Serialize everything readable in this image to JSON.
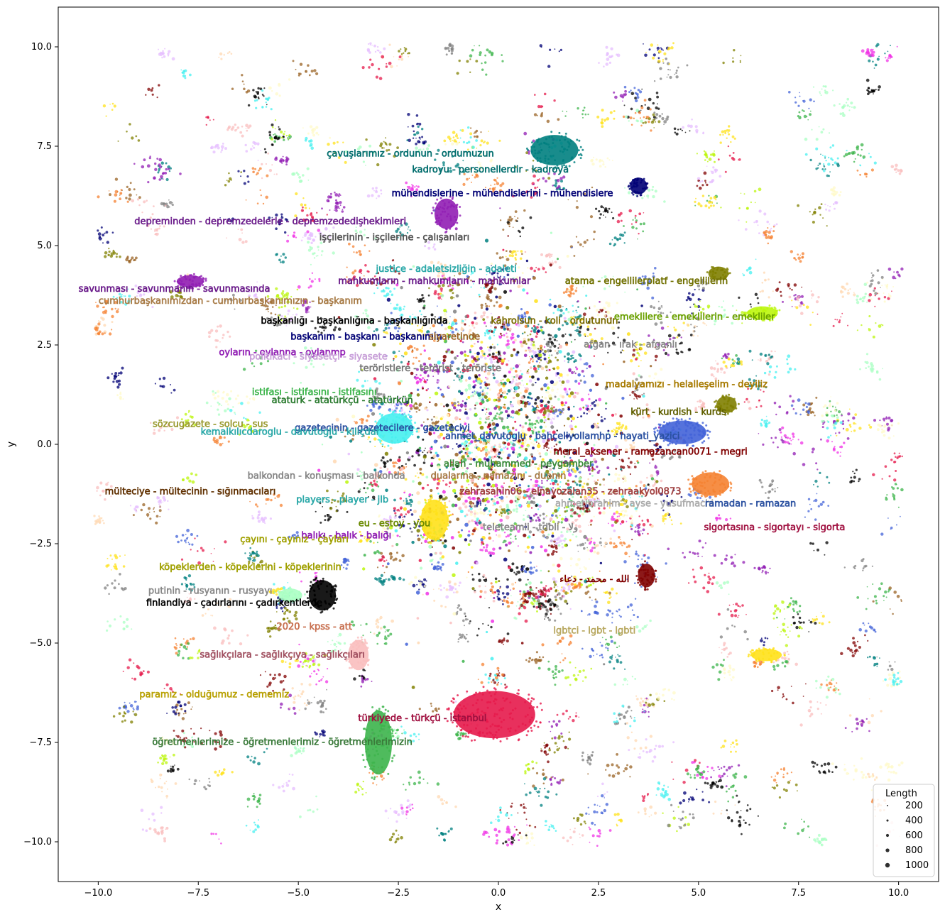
{
  "chart_data": {
    "type": "scatter",
    "title": "",
    "xlabel": "x",
    "ylabel": "y",
    "xlim": [
      -11,
      11
    ],
    "ylim": [
      -11,
      11
    ],
    "x_ticks": [
      -10.0,
      -7.5,
      -5.0,
      -2.5,
      0.0,
      2.5,
      5.0,
      7.5,
      10.0
    ],
    "y_ticks": [
      -10.0,
      -7.5,
      -5.0,
      -2.5,
      0.0,
      2.5,
      5.0,
      7.5,
      10.0
    ],
    "x_tick_labels": [
      "−10.0",
      "−7.5",
      "−5.0",
      "−2.5",
      "0.0",
      "2.5",
      "5.0",
      "7.5",
      "10.0"
    ],
    "y_tick_labels": [
      "−10.0",
      "−7.5",
      "−5.0",
      "−2.5",
      "0.0",
      "2.5",
      "5.0",
      "7.5",
      "10.0"
    ],
    "grid": false,
    "legend": {
      "title": "Length",
      "placement": "bottom-right",
      "entries": [
        "200",
        "400",
        "600",
        "800",
        "1000"
      ]
    },
    "palette": [
      "#e6194b",
      "#3cb44b",
      "#ffe119",
      "#4363d8",
      "#f58231",
      "#911eb4",
      "#46f0f0",
      "#f032e6",
      "#bcf60c",
      "#fabebe",
      "#008080",
      "#e6beff",
      "#9a6324",
      "#fffac8",
      "#800000",
      "#aaffc3",
      "#808000",
      "#ffd8b1",
      "#000075",
      "#808080",
      "#000000"
    ],
    "clusters": [
      {
        "label": "türkiyede - türkçü - istanbul",
        "x": -0.1,
        "y": -6.8,
        "rx": 1.2,
        "ry": 0.7,
        "color": "#e6194b",
        "size": 1000
      },
      {
        "label": "kürt - kurdish - kurds",
        "x": 4.6,
        "y": 0.3,
        "rx": 0.7,
        "ry": 0.35,
        "color": "#4363d8",
        "size": 700
      },
      {
        "label": "çavuşlarımız - ordunun - ordumuzun",
        "x": 1.4,
        "y": 7.4,
        "rx": 0.7,
        "ry": 0.45,
        "color": "#008080",
        "size": 500
      },
      {
        "label": "gazetecinin - gazetecilere - gazeteciyi",
        "x": -2.6,
        "y": 0.4,
        "rx": 0.55,
        "ry": 0.45,
        "color": "#46f0f0",
        "size": 500
      },
      {
        "label": "eu - estoy - you",
        "x": -1.6,
        "y": -1.9,
        "rx": 0.4,
        "ry": 0.6,
        "color": "#ffe119",
        "size": 500
      },
      {
        "label": "ramadan - ramazan",
        "x": 5.3,
        "y": -1.0,
        "rx": 0.55,
        "ry": 0.35,
        "color": "#f58231",
        "size": 400
      },
      {
        "label": "öğretmenlerimize - öğretmenlerimiz - öğretmenlerimizin",
        "x": -3.0,
        "y": -7.5,
        "rx": 0.4,
        "ry": 0.95,
        "color": "#3cb44b",
        "size": 400
      },
      {
        "label": "finlandiya - çadırlarını - çadırkentlerde",
        "x": -4.4,
        "y": -3.8,
        "rx": 0.4,
        "ry": 0.45,
        "color": "#000000",
        "size": 400
      },
      {
        "label": "depreminden - depremzedelerle - depremzededişhekimleri",
        "x": -1.3,
        "y": 5.8,
        "rx": 0.35,
        "ry": 0.45,
        "color": "#911eb4",
        "size": 350
      },
      {
        "label": "emeklilere - emeklilerin - emekliler",
        "x": 6.6,
        "y": 3.3,
        "rx": 0.45,
        "ry": 0.2,
        "color": "#bcf60c",
        "size": 300
      },
      {
        "label": "savunması - savunmanın - savunmasında",
        "x": -7.7,
        "y": 4.1,
        "rx": 0.4,
        "ry": 0.18,
        "color": "#911eb4",
        "size": 300
      },
      {
        "label": "mühendislerine - mühendislerini - mühendislere",
        "x": 3.5,
        "y": 6.5,
        "rx": 0.25,
        "ry": 0.25,
        "color": "#000075",
        "size": 250
      },
      {
        "label": "allah - muhammed - peygamber",
        "x": 3.7,
        "y": -3.3,
        "rx": 0.25,
        "ry": 0.35,
        "color": "#800000",
        "size": 250
      },
      {
        "label": "putinin - rusyanın - rusyayı",
        "x": -5.2,
        "y": -3.8,
        "rx": 0.35,
        "ry": 0.2,
        "color": "#aaffc3",
        "size": 250
      },
      {
        "label": "sağlıkçılara - sağlıkçıya - sağlıkçıları",
        "x": -3.5,
        "y": -5.3,
        "rx": 0.3,
        "ry": 0.45,
        "color": "#fabebe",
        "size": 250
      },
      {
        "label": "madalyamızı - helalleşelim - deyiliz",
        "x": 5.7,
        "y": 1.0,
        "rx": 0.3,
        "ry": 0.25,
        "color": "#808000",
        "size": 250
      },
      {
        "label": "sigortasına - sigortayı - sigorta",
        "x": 6.7,
        "y": -5.3,
        "rx": 0.45,
        "ry": 0.18,
        "color": "#ffe119",
        "size": 250
      },
      {
        "label": "mahkumların - mahkumların - mahkumlar",
        "x": 5.5,
        "y": 4.3,
        "rx": 0.3,
        "ry": 0.2,
        "color": "#808000",
        "size": 200
      }
    ],
    "labels": [
      {
        "text": "çavuşlarımız - ordunun - ordumuzun",
        "x": -2.2,
        "y": 7.3,
        "color": "#006d6d"
      },
      {
        "text": "kadroyu - personellerdir - kadroya",
        "x": -0.2,
        "y": 6.9,
        "color": "#006d6d"
      },
      {
        "text": "mühendislerine - mühendislerini - mühendislere",
        "x": 0.1,
        "y": 6.3,
        "color": "#000075"
      },
      {
        "text": "depreminden - depremzedelerle - depremzededişhekimleri",
        "x": -5.7,
        "y": 5.6,
        "color": "#6a1b8a"
      },
      {
        "text": "işçilerinin - işçilerine - çalışanları",
        "x": -2.6,
        "y": 5.2,
        "color": "#555555"
      },
      {
        "text": "justice - adaletsizliğin - adaleti",
        "x": -1.3,
        "y": 4.4,
        "color": "#2aa8a8"
      },
      {
        "text": "mahkumların - mahkumların - mahkumlar",
        "x": -1.6,
        "y": 4.1,
        "color": "#6a1b8a"
      },
      {
        "text": "atama - engellilerplatf - engellilerin",
        "x": 3.7,
        "y": 4.1,
        "color": "#707000"
      },
      {
        "text": "savunması - savunmanın - savunmasında",
        "x": -8.1,
        "y": 3.9,
        "color": "#6a1b8a"
      },
      {
        "text": "cumhurbaşkanımızdan - cumhurbaşkanımızın - başkanım",
        "x": -6.7,
        "y": 3.6,
        "color": "#a77a45"
      },
      {
        "text": "başkanlığı - başkanlığına - başkanlığında",
        "x": -3.6,
        "y": 3.1,
        "color": "#000000"
      },
      {
        "text": "kahrolsun - koli - ordutunun",
        "x": 1.4,
        "y": 3.1,
        "color": "#7a6a00"
      },
      {
        "text": "emeklilere - emeklilerin - emekliler",
        "x": 4.9,
        "y": 3.2,
        "color": "#6aa000"
      },
      {
        "text": "başkanım - başkanı - başkanımın",
        "x": -3.3,
        "y": 2.7,
        "color": "#000075"
      },
      {
        "text": "siyaretinde",
        "x": -1.1,
        "y": 2.7,
        "color": "#9a6324"
      },
      {
        "text": "afgan - ırak - afganlı",
        "x": 3.3,
        "y": 2.5,
        "color": "#888888"
      },
      {
        "text": "oyların - oylanna - oylanmp",
        "x": -5.4,
        "y": 2.3,
        "color": "#911eb4"
      },
      {
        "text": "politikacı - siyasetçi - siyasete",
        "x": -4.5,
        "y": 2.2,
        "color": "#c8a0d8"
      },
      {
        "text": "teröristlere - terörist - teröriste",
        "x": -1.7,
        "y": 1.9,
        "color": "#777777"
      },
      {
        "text": "madalyamızı - helalleşelim - deyiliz",
        "x": 4.7,
        "y": 1.5,
        "color": "#a77a00"
      },
      {
        "text": "istifası - istifasını - istifasını",
        "x": -4.6,
        "y": 1.3,
        "color": "#3cb44b"
      },
      {
        "text": "ataturk - atatürkçü - atatürkün",
        "x": -3.9,
        "y": 1.1,
        "color": "#2e7d32"
      },
      {
        "text": "kürt - kurdish - kurds",
        "x": 4.5,
        "y": 0.8,
        "color": "#606000"
      },
      {
        "text": "sözcugazete - solcu - sus",
        "x": -7.2,
        "y": 0.5,
        "color": "#9a9a30"
      },
      {
        "text": "gazetecinin - gazetecilere - gazeteciyi",
        "x": -2.9,
        "y": 0.4,
        "color": "#2a50a0"
      },
      {
        "text": "kemalkılıcdaroglu - davutoglu - kılıçdar",
        "x": -5.2,
        "y": 0.3,
        "color": "#2aa8a8"
      },
      {
        "text": "ahmet_davutoglu - bahçeliyollamhp - hayati_yazici",
        "x": 1.6,
        "y": 0.2,
        "color": "#2a50a0"
      },
      {
        "text": "meral_aksener - ramazancan0071 - megri",
        "x": 3.8,
        "y": -0.2,
        "color": "#800000"
      },
      {
        "text": "allah - muhammed - peygamber",
        "x": 0.5,
        "y": -0.5,
        "color": "#3a8a3a"
      },
      {
        "text": "balkondan - konuşması - balkonda",
        "x": -4.3,
        "y": -0.8,
        "color": "#888888"
      },
      {
        "text": "dualarına - namazını - duanın",
        "x": 0.0,
        "y": -0.8,
        "color": "#a77a45"
      },
      {
        "text": "mülteciye - mültecinin - sığınmacıları",
        "x": -7.7,
        "y": -1.2,
        "color": "#603000"
      },
      {
        "text": "zehrasahin06 - elnayozalan35 - zehraakyol0873",
        "x": 1.8,
        "y": -1.2,
        "color": "#a04040"
      },
      {
        "text": "players - player - jlb",
        "x": -3.9,
        "y": -1.4,
        "color": "#2aa8a8"
      },
      {
        "text": "ahmetibrahim - ayse - yusufmachi",
        "x": 3.4,
        "y": -1.5,
        "color": "#aaaaaa"
      },
      {
        "text": "ramadan - ramazan",
        "x": 6.3,
        "y": -1.5,
        "color": "#2a50a0"
      },
      {
        "text": "eu - estoy - you",
        "x": -2.6,
        "y": -2.0,
        "color": "#6a8a00"
      },
      {
        "text": "teleteamli - tdbli - ولا",
        "x": 0.8,
        "y": -2.1,
        "color": "#888888"
      },
      {
        "text": "sigortasına - sigortayı - sigorta",
        "x": 6.9,
        "y": -2.1,
        "color": "#a01040"
      },
      {
        "text": "balıkı - balık - balığı",
        "x": -3.8,
        "y": -2.3,
        "color": "#911eb4"
      },
      {
        "text": "çayını - çayınız - çayları",
        "x": -5.1,
        "y": -2.4,
        "color": "#a0a000"
      },
      {
        "text": "köpeklerden - köpeklerini - köpeklerinin",
        "x": -6.2,
        "y": -3.1,
        "color": "#a0a000"
      },
      {
        "text": "الله - محمد - دعاء",
        "x": 2.4,
        "y": -3.4,
        "color": "#800000"
      },
      {
        "text": "putinin - rusyanın - rusyayı",
        "x": -7.2,
        "y": -3.7,
        "color": "#888888"
      },
      {
        "text": "finlandiya - çadırlarını - çadırkentlerde",
        "x": -6.6,
        "y": -4.0,
        "color": "#000000"
      },
      {
        "text": "2020 - kpss - att",
        "x": -4.6,
        "y": -4.6,
        "color": "#c87050"
      },
      {
        "text": "lgbtci - lgbt - lgbti",
        "x": 2.4,
        "y": -4.7,
        "color": "#b8a860"
      },
      {
        "text": "sağlıkçılara - sağlıkçıya - sağlıkçıları",
        "x": -5.4,
        "y": -5.3,
        "color": "#a05060"
      },
      {
        "text": "paramız - olduğumuz - dememiz",
        "x": -7.1,
        "y": -6.3,
        "color": "#b8a000"
      },
      {
        "text": "türkiyede - türkçü - istanbul",
        "x": -1.9,
        "y": -6.9,
        "color": "#a01040"
      },
      {
        "text": "öğretmenlerimize - öğretmenlerimiz - öğretmenlerimizin",
        "x": -5.4,
        "y": -7.5,
        "color": "#3a7a3a"
      }
    ]
  }
}
